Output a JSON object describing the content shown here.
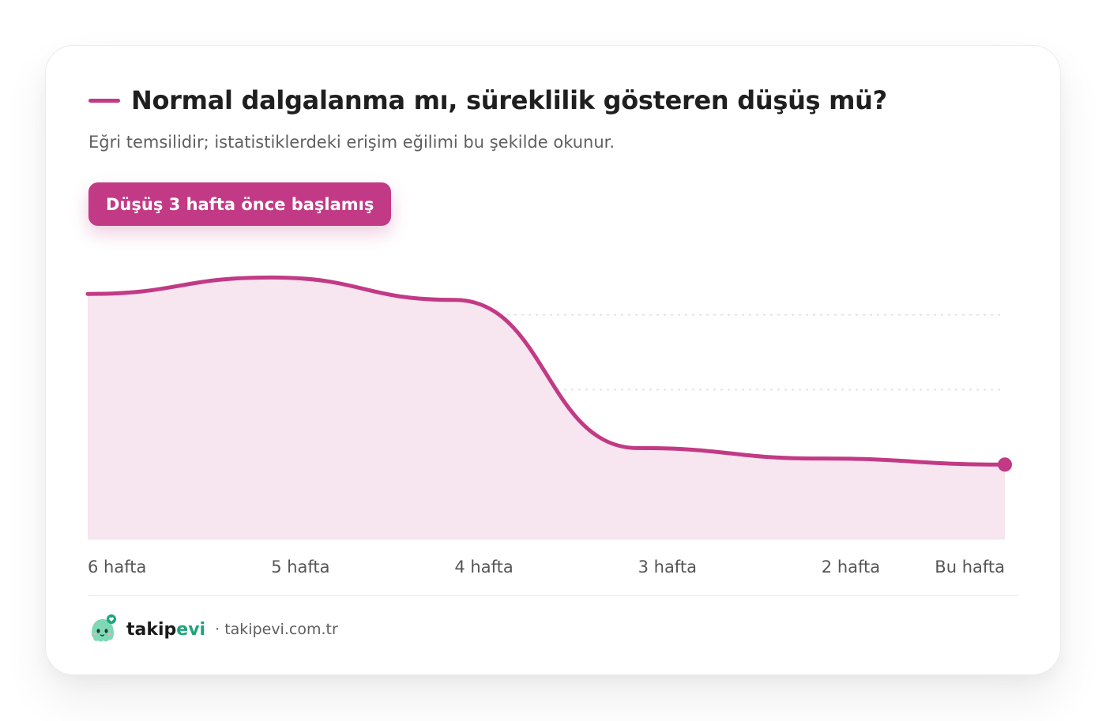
{
  "colors": {
    "accent": "#C23A85",
    "fill": "#F7E5EF",
    "brand_green": "#1FA37A",
    "text_dark": "#1f1f1f",
    "text_muted": "#5f5f5f"
  },
  "header": {
    "title": "Normal dalgalanma mı, süreklilik gösteren düşüş mü?",
    "subtitle": "Eğri temsilidir; istatistiklerdeki erişim eğilimi bu şekilde okunur.",
    "badge": "Düşüş 3 hafta önce başlamış"
  },
  "chart_data": {
    "type": "area",
    "title": "Normal dalgalanma mı, süreklilik gösteren düşüş mü?",
    "categories": [
      "6 hafta",
      "5 hafta",
      "4 hafta",
      "3 hafta",
      "2 hafta",
      "Bu hafta"
    ],
    "values": [
      82,
      87.5,
      80,
      30.5,
      27,
      25
    ],
    "ylim": [
      0,
      100
    ],
    "grid": "horizontal dotted",
    "legend": "top-left",
    "annotation": "Düşüş 3 hafta önce başlamış"
  },
  "footer": {
    "brand_main": "takip",
    "brand_accent": "evi",
    "url": "· takipevi.com.tr",
    "logo_icon": "ghost-mascot-icon"
  }
}
